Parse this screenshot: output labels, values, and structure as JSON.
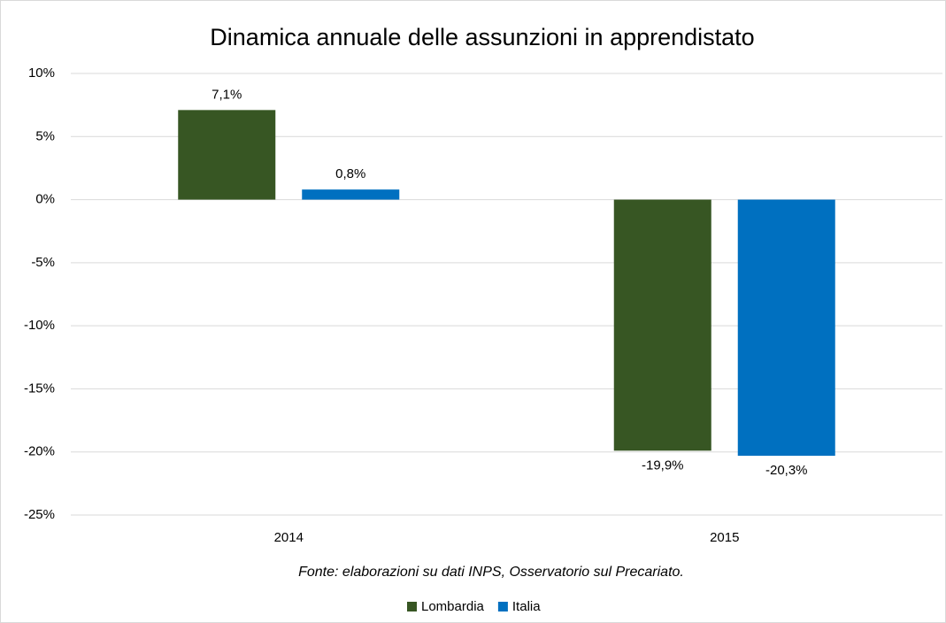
{
  "chart_data": {
    "type": "bar",
    "title": "Dinamica annuale delle assunzioni in apprendistato",
    "annotation": "Fonte: elaborazioni su dati INPS, Osservatorio sul Precariato.",
    "categories": [
      "2014",
      "2015"
    ],
    "series": [
      {
        "name": "Lombardia",
        "color": "#375623",
        "values": [
          7.1,
          -19.9
        ],
        "value_labels": [
          "7,1%",
          "-19,9%"
        ]
      },
      {
        "name": "Italia",
        "color": "#0070c0",
        "values": [
          0.8,
          -20.3
        ],
        "value_labels": [
          "0,8%",
          "-20,3%"
        ]
      }
    ],
    "ylim": [
      -25,
      10
    ],
    "yticks": [
      {
        "value": 10,
        "label": "10%"
      },
      {
        "value": 5,
        "label": "5%"
      },
      {
        "value": 0,
        "label": "0%"
      },
      {
        "value": -5,
        "label": "-5%"
      },
      {
        "value": -10,
        "label": "-10%"
      },
      {
        "value": -15,
        "label": "-15%"
      },
      {
        "value": -20,
        "label": "-20%"
      },
      {
        "value": -25,
        "label": "-25%"
      }
    ],
    "grid": true,
    "legend": "bottom"
  }
}
